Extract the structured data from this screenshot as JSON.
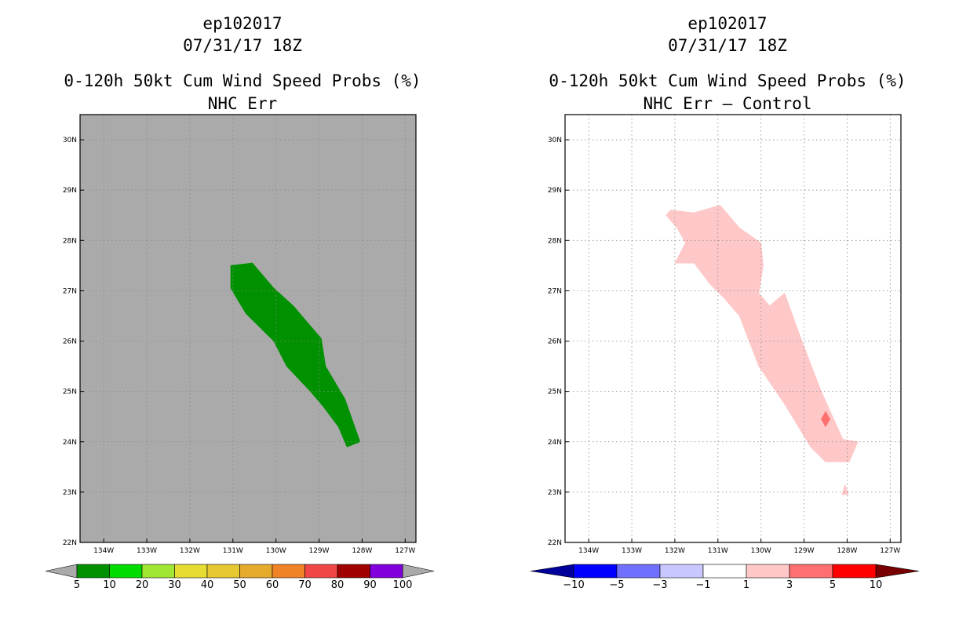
{
  "panels": [
    {
      "storm_id": "ep102017",
      "datetime": "07/31/17 18Z",
      "title": "0-120h 50kt Cum Wind Speed Probs (%)",
      "subtitle": "NHC Err",
      "background": "#aaaaaa",
      "colorbar": {
        "labels": [
          "5",
          "10",
          "20",
          "30",
          "40",
          "50",
          "60",
          "70",
          "80",
          "90",
          "100"
        ],
        "colors": [
          "#009100",
          "#00dc00",
          "#a0e632",
          "#e6dc32",
          "#e6c832",
          "#e6aa2d",
          "#f08228",
          "#f04646",
          "#a00000",
          "#8200dc"
        ],
        "end_color": "#aaaaaa"
      }
    },
    {
      "storm_id": "ep102017",
      "datetime": "07/31/17 18Z",
      "title": "0-120h 50kt Cum Wind Speed Probs (%)",
      "subtitle": "NHC Err — Control",
      "background": "#ffffff",
      "colorbar": {
        "labels": [
          "−10",
          "−5",
          "−3",
          "−1",
          "1",
          "3",
          "5",
          "10"
        ],
        "colors": [
          "#0000ff",
          "#7070ff",
          "#c8c8ff",
          "#ffffff",
          "#ffc8c8",
          "#ff7070",
          "#ff0000"
        ],
        "left_end_color": "#00009b",
        "right_end_color": "#780000"
      }
    }
  ],
  "chart_data": [
    {
      "type": "heatmap",
      "title": "0-120h 50kt Cum Wind Speed Probs (%)",
      "subtitle": "NHC Err",
      "x_ticks": [
        "134W",
        "133W",
        "132W",
        "131W",
        "130W",
        "129W",
        "128W",
        "127W"
      ],
      "y_ticks": [
        "30N",
        "29N",
        "28N",
        "27N",
        "26N",
        "25N",
        "24N",
        "23N",
        "22N"
      ],
      "xlim_lon": [
        -134.55,
        -126.75
      ],
      "ylim_lat": [
        22,
        30.5
      ],
      "grid": true,
      "regions": [
        {
          "label": "5-10",
          "color": "#009100",
          "polygon_lonlat": [
            [
              -131.05,
              27.5
            ],
            [
              -130.55,
              27.55
            ],
            [
              -130.05,
              27.05
            ],
            [
              -129.6,
              26.7
            ],
            [
              -128.95,
              26.05
            ],
            [
              -128.85,
              25.5
            ],
            [
              -128.4,
              24.85
            ],
            [
              -128.05,
              24.0
            ],
            [
              -128.35,
              23.9
            ],
            [
              -128.55,
              24.3
            ],
            [
              -128.9,
              24.7
            ],
            [
              -129.2,
              25.0
            ],
            [
              -129.75,
              25.5
            ],
            [
              -130.05,
              26.0
            ],
            [
              -130.7,
              26.55
            ],
            [
              -131.05,
              27.05
            ]
          ]
        }
      ]
    },
    {
      "type": "heatmap",
      "title": "0-120h 50kt Cum Wind Speed Probs (%)",
      "subtitle": "NHC Err — Control",
      "x_ticks": [
        "134W",
        "133W",
        "132W",
        "131W",
        "130W",
        "129W",
        "128W",
        "127W"
      ],
      "y_ticks": [
        "30N",
        "29N",
        "28N",
        "27N",
        "26N",
        "25N",
        "24N",
        "23N",
        "22N"
      ],
      "xlim_lon": [
        -134.55,
        -126.75
      ],
      "ylim_lat": [
        22,
        30.5
      ],
      "grid": true,
      "regions": [
        {
          "label": "1-3",
          "color": "#ffc8c8",
          "polygon_lonlat": [
            [
              -132.1,
              28.6
            ],
            [
              -131.55,
              28.55
            ],
            [
              -130.95,
              28.7
            ],
            [
              -130.5,
              28.25
            ],
            [
              -130.0,
              27.95
            ],
            [
              -129.95,
              27.5
            ],
            [
              -130.05,
              26.95
            ],
            [
              -129.8,
              26.7
            ],
            [
              -129.45,
              26.95
            ],
            [
              -129.05,
              26.0
            ],
            [
              -128.6,
              25.0
            ],
            [
              -128.1,
              24.05
            ],
            [
              -127.75,
              24.0
            ],
            [
              -127.95,
              23.6
            ],
            [
              -128.5,
              23.6
            ],
            [
              -128.85,
              23.9
            ],
            [
              -129.45,
              24.75
            ],
            [
              -130.05,
              25.5
            ],
            [
              -130.5,
              26.5
            ],
            [
              -130.85,
              26.85
            ],
            [
              -131.2,
              27.15
            ],
            [
              -131.55,
              27.55
            ],
            [
              -132.0,
              27.55
            ],
            [
              -131.75,
              27.95
            ],
            [
              -131.95,
              28.25
            ],
            [
              -132.2,
              28.5
            ]
          ]
        },
        {
          "label": "1-3",
          "color": "#ffc8c8",
          "polygon_lonlat": [
            [
              -128.05,
              23.15
            ],
            [
              -127.97,
              22.95
            ],
            [
              -128.12,
              22.95
            ]
          ]
        },
        {
          "label": "3-5",
          "color": "#ff7070",
          "polygon_lonlat": [
            [
              -128.5,
              24.6
            ],
            [
              -128.4,
              24.45
            ],
            [
              -128.5,
              24.3
            ],
            [
              -128.6,
              24.45
            ]
          ]
        }
      ]
    }
  ]
}
